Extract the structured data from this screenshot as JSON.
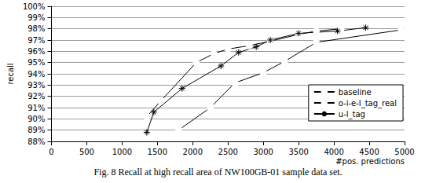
{
  "chart_data": {
    "type": "line",
    "title": "Fig. 8 Recall at high recall area of NW100GB-01 sample data set.",
    "x_label": "#pos. predictions",
    "y_label": "recall",
    "xlim": [
      0,
      5000
    ],
    "xticks": [
      0,
      500,
      1000,
      1500,
      2000,
      2500,
      3000,
      3500,
      4000,
      4500,
      5000
    ],
    "ylim": [
      88,
      100
    ],
    "yticks": [
      {
        "value": 88,
        "label": "88%"
      },
      {
        "value": 89,
        "label": "89%"
      },
      {
        "value": 90,
        "label": "90%"
      },
      {
        "value": 91,
        "label": "91%"
      },
      {
        "value": 92,
        "label": "92%"
      },
      {
        "value": 93,
        "label": "93%"
      },
      {
        "value": 94,
        "label": "94%"
      },
      {
        "value": 95,
        "label": "95%"
      },
      {
        "value": 96,
        "label": "96%"
      },
      {
        "value": 97,
        "label": "97%"
      },
      {
        "value": 98,
        "label": "98%"
      },
      {
        "value": 99,
        "label": "99%"
      },
      {
        "value": 100,
        "label": "100%"
      }
    ],
    "grid": true,
    "legend": "lower right",
    "series": [
      {
        "name": "baseline",
        "color": "#000000",
        "marker": "square",
        "line_style": "solid",
        "x": [
          1800,
          2250,
          2600,
          3000,
          3300,
          3750,
          4950
        ],
        "values": [
          89.0,
          91.0,
          93.2,
          94.1,
          95.1,
          96.8,
          97.9
        ]
      },
      {
        "name": "o-i-e-l_tag_real",
        "color": "#000000",
        "marker": "circle",
        "line_style": "solid",
        "x": [
          1350,
          1550,
          2050,
          2300,
          2500,
          2800,
          3100,
          3500,
          3750,
          4100
        ],
        "values": [
          90.2,
          91.6,
          95.0,
          95.8,
          96.2,
          96.5,
          96.9,
          97.5,
          97.8,
          98.0
        ]
      },
      {
        "name": "u-l_tag",
        "color": "#000000",
        "marker": "asterisk",
        "line_style": "solid",
        "x": [
          1350,
          1450,
          1850,
          2400,
          2650,
          2900,
          3100,
          3500,
          4050,
          4450
        ],
        "values": [
          88.8,
          90.6,
          92.7,
          94.7,
          95.9,
          96.4,
          97.0,
          97.6,
          97.8,
          98.1
        ]
      }
    ]
  }
}
